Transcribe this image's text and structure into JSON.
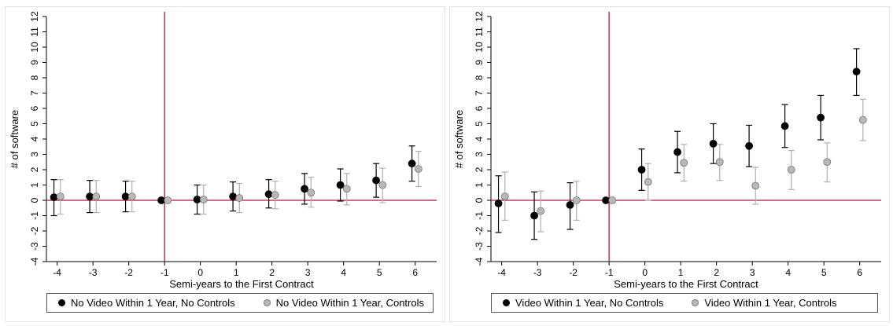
{
  "chart_data": [
    {
      "type": "scatter",
      "xlabel": "Semi-years to the First Contract",
      "ylabel": "# of software",
      "x": [
        -4,
        -3,
        -2,
        -1,
        0,
        1,
        2,
        3,
        4,
        5,
        6
      ],
      "xlim": [
        -4.3,
        6.6
      ],
      "ylim": [
        -4,
        12
      ],
      "yticks": [
        -4,
        -3,
        -2,
        -1,
        0,
        1,
        2,
        3,
        4,
        5,
        6,
        7,
        8,
        9,
        10,
        11,
        12
      ],
      "vline_x": -1,
      "hline_y": 0,
      "grid": false,
      "legend_position": "bottom",
      "series": [
        {
          "name": "No Video Within 1 Year, No Controls",
          "color": "#000000",
          "values": [
            0.2,
            0.25,
            0.25,
            0.0,
            0.05,
            0.25,
            0.4,
            0.75,
            1.0,
            1.3,
            2.4
          ],
          "ci_low": [
            -1.0,
            -0.8,
            -0.75,
            0.0,
            -0.9,
            -0.7,
            -0.5,
            -0.25,
            -0.05,
            0.2,
            1.25
          ],
          "ci_high": [
            1.35,
            1.3,
            1.25,
            0.0,
            1.0,
            1.2,
            1.35,
            1.75,
            2.05,
            2.4,
            3.55
          ]
        },
        {
          "name": "No Video Within 1 Year, Controls",
          "color": "#b8b8b8",
          "values": [
            0.25,
            0.25,
            0.25,
            0.0,
            0.05,
            0.15,
            0.35,
            0.5,
            0.75,
            1.0,
            2.05
          ],
          "ci_low": [
            -0.9,
            -0.8,
            -0.75,
            0.0,
            -0.9,
            -0.8,
            -0.55,
            -0.45,
            -0.3,
            -0.15,
            0.9
          ],
          "ci_high": [
            1.35,
            1.3,
            1.25,
            0.0,
            1.0,
            1.1,
            1.25,
            1.5,
            1.75,
            2.1,
            3.2
          ]
        }
      ]
    },
    {
      "type": "scatter",
      "xlabel": "Semi-years to the First Contract",
      "ylabel": "# of software",
      "x": [
        -4,
        -3,
        -2,
        -1,
        0,
        1,
        2,
        3,
        4,
        5,
        6
      ],
      "xlim": [
        -4.3,
        6.6
      ],
      "ylim": [
        -4,
        12
      ],
      "yticks": [
        -4,
        -3,
        -2,
        -1,
        0,
        1,
        2,
        3,
        4,
        5,
        6,
        7,
        8,
        9,
        10,
        11,
        12
      ],
      "vline_x": -1,
      "hline_y": 0,
      "grid": false,
      "legend_position": "bottom",
      "series": [
        {
          "name": "Video Within 1 Year, No Controls",
          "color": "#000000",
          "values": [
            -0.2,
            -1.0,
            -0.3,
            0.0,
            2.0,
            3.15,
            3.7,
            3.55,
            4.85,
            5.4,
            8.4
          ],
          "ci_low": [
            -2.1,
            -2.55,
            -1.9,
            0.0,
            0.65,
            1.8,
            2.4,
            2.2,
            3.45,
            3.95,
            6.85
          ],
          "ci_high": [
            1.6,
            0.55,
            1.15,
            0.0,
            3.35,
            4.5,
            5.0,
            4.9,
            6.25,
            6.85,
            9.9
          ]
        },
        {
          "name": "Video Within 1 Year, Controls",
          "color": "#b8b8b8",
          "values": [
            0.25,
            -0.7,
            0.0,
            0.0,
            1.2,
            2.45,
            2.5,
            0.95,
            2.0,
            2.5,
            5.25
          ],
          "ci_low": [
            -1.3,
            -2.05,
            -1.3,
            0.0,
            0.0,
            1.25,
            1.3,
            -0.25,
            0.7,
            1.2,
            3.9
          ],
          "ci_high": [
            1.85,
            0.6,
            1.25,
            0.0,
            2.4,
            3.65,
            3.65,
            2.15,
            3.25,
            3.75,
            6.6
          ]
        }
      ]
    }
  ]
}
